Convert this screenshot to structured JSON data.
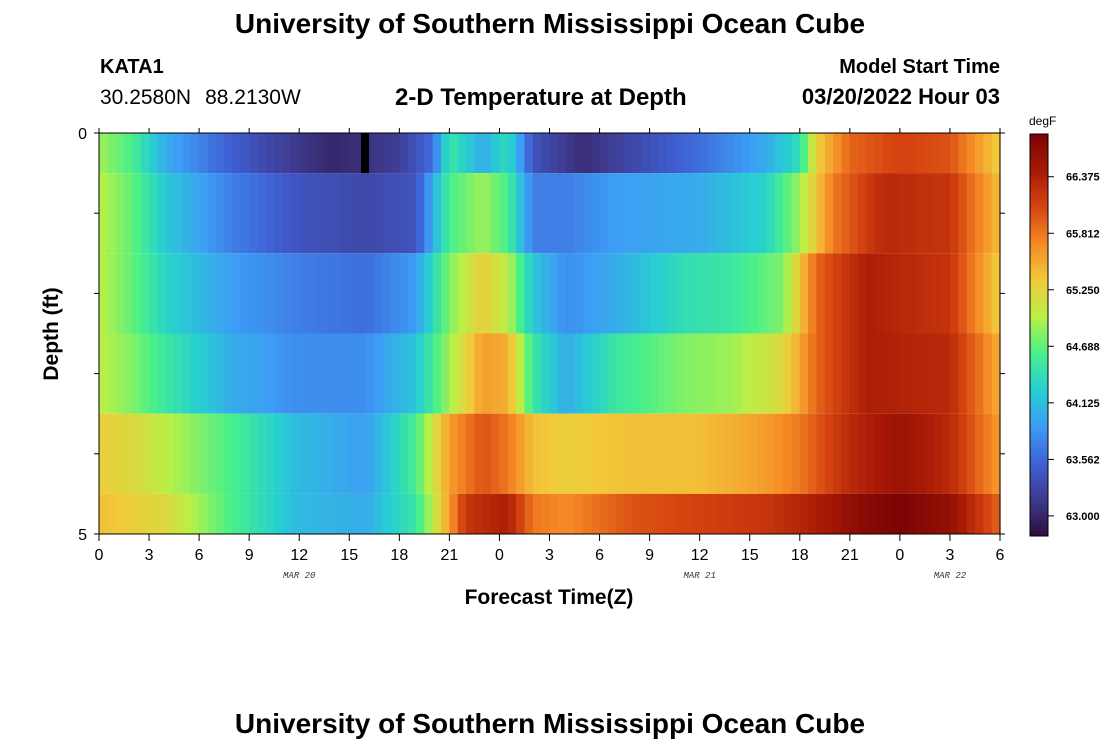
{
  "header": {
    "title": "University of Southern Mississippi Ocean Cube",
    "title_repeat": "University of Southern Mississippi Ocean Cube",
    "station": "KATA1",
    "lat": "30.2580N",
    "lon": "88.2130W",
    "subtitle": "2-D Temperature at Depth",
    "model_start_label": "Model Start Time",
    "model_start_value": "03/20/2022 Hour 03"
  },
  "chart_data": {
    "type": "heatmap",
    "title": "2-D Temperature at Depth",
    "xlabel": "Forecast Time(Z)",
    "ylabel": "Depth (ft)",
    "unit": "degF",
    "x_hours": [
      0,
      6
    ],
    "x_range_hours": [
      0,
      54
    ],
    "depth_range": [
      0,
      5
    ],
    "y_tick_labels": [
      "0",
      "5"
    ],
    "x_tick_labels": [
      "0",
      "3",
      "6",
      "9",
      "12",
      "15",
      "18",
      "21",
      "0",
      "3",
      "6",
      "9",
      "12",
      "15",
      "18",
      "21",
      "0",
      "3",
      "6"
    ],
    "date_labels": [
      {
        "label": "MAR 20",
        "hour": 12
      },
      {
        "label": "MAR 21",
        "hour": 36
      },
      {
        "label": "MAR 22",
        "hour": 51
      }
    ],
    "colorbar_ticks": [
      "66.375",
      "65.812",
      "65.250",
      "64.688",
      "64.125",
      "63.562",
      "63.000"
    ],
    "colorbar_range": [
      62.8,
      66.8
    ],
    "colors": [
      "#2b0f3e",
      "#3e3a8e",
      "#3f62d6",
      "#3d9df5",
      "#27cfd1",
      "#49f08a",
      "#b9f046",
      "#f2c93a",
      "#f58a25",
      "#d54410",
      "#a81906",
      "#7a0403"
    ],
    "rows": [
      {
        "depth": "0-0.5",
        "keys": [
          [
            0,
            64.9
          ],
          [
            2,
            64.6
          ],
          [
            4,
            64.0
          ],
          [
            7,
            63.6
          ],
          [
            10,
            63.3
          ],
          [
            14,
            63.0
          ],
          [
            18,
            63.2
          ],
          [
            20,
            63.6
          ],
          [
            21,
            64.5
          ],
          [
            23,
            64.0
          ],
          [
            24.5,
            64.4
          ],
          [
            26,
            63.4
          ],
          [
            29,
            63.05
          ],
          [
            32,
            63.3
          ],
          [
            36,
            63.6
          ],
          [
            40,
            64.0
          ],
          [
            42,
            64.4
          ],
          [
            43,
            65.3
          ],
          [
            45,
            65.9
          ],
          [
            48,
            66.1
          ],
          [
            51,
            66.0
          ],
          [
            54,
            65.3
          ]
        ]
      },
      {
        "depth": "0.5-1.5",
        "keys": [
          [
            0,
            65.0
          ],
          [
            2,
            64.7
          ],
          [
            4,
            64.2
          ],
          [
            8,
            63.7
          ],
          [
            12,
            63.4
          ],
          [
            16,
            63.3
          ],
          [
            19,
            63.4
          ],
          [
            21,
            64.6
          ],
          [
            23,
            64.9
          ],
          [
            24.5,
            64.6
          ],
          [
            26,
            63.7
          ],
          [
            28,
            63.7
          ],
          [
            31,
            63.9
          ],
          [
            36,
            64.0
          ],
          [
            40,
            64.3
          ],
          [
            42,
            64.9
          ],
          [
            44,
            65.8
          ],
          [
            47,
            66.3
          ],
          [
            51,
            66.2
          ],
          [
            54,
            65.4
          ]
        ]
      },
      {
        "depth": "1.5-2.5",
        "keys": [
          [
            0,
            65.0
          ],
          [
            2,
            64.7
          ],
          [
            4,
            64.3
          ],
          [
            8,
            63.9
          ],
          [
            12,
            63.7
          ],
          [
            16,
            63.6
          ],
          [
            19,
            63.9
          ],
          [
            21,
            64.8
          ],
          [
            23,
            65.3
          ],
          [
            24.5,
            65.0
          ],
          [
            26,
            64.2
          ],
          [
            28,
            63.8
          ],
          [
            31,
            64.0
          ],
          [
            35,
            64.4
          ],
          [
            38,
            64.5
          ],
          [
            41,
            64.8
          ],
          [
            43,
            65.9
          ],
          [
            46,
            66.4
          ],
          [
            51,
            66.2
          ],
          [
            54,
            65.3
          ]
        ]
      },
      {
        "depth": "2.5-3.5",
        "keys": [
          [
            0,
            65.0
          ],
          [
            2,
            64.8
          ],
          [
            4,
            64.5
          ],
          [
            8,
            64.0
          ],
          [
            12,
            63.8
          ],
          [
            16,
            63.8
          ],
          [
            19,
            64.2
          ],
          [
            21,
            64.9
          ],
          [
            23,
            65.6
          ],
          [
            24.5,
            65.5
          ],
          [
            26,
            64.5
          ],
          [
            28,
            64.0
          ],
          [
            31,
            64.5
          ],
          [
            35,
            64.8
          ],
          [
            38,
            64.9
          ],
          [
            41,
            65.2
          ],
          [
            43,
            65.9
          ],
          [
            46,
            66.4
          ],
          [
            51,
            66.3
          ],
          [
            54,
            65.5
          ]
        ]
      },
      {
        "depth": "3.5-4.5",
        "keys": [
          [
            0,
            65.3
          ],
          [
            2,
            65.2
          ],
          [
            4,
            65.0
          ],
          [
            8,
            64.6
          ],
          [
            12,
            64.1
          ],
          [
            16,
            63.9
          ],
          [
            19,
            64.6
          ],
          [
            21,
            65.6
          ],
          [
            23,
            66.0
          ],
          [
            24.5,
            65.8
          ],
          [
            26,
            65.4
          ],
          [
            28,
            65.3
          ],
          [
            32,
            65.4
          ],
          [
            36,
            65.4
          ],
          [
            40,
            65.6
          ],
          [
            42,
            65.8
          ],
          [
            45,
            66.3
          ],
          [
            48,
            66.55
          ],
          [
            51,
            66.3
          ],
          [
            54,
            65.6
          ]
        ]
      },
      {
        "depth": "4.5-5",
        "keys": [
          [
            0,
            65.4
          ],
          [
            2,
            65.3
          ],
          [
            4,
            65.2
          ],
          [
            8,
            64.6
          ],
          [
            12,
            64.1
          ],
          [
            16,
            64.0
          ],
          [
            19,
            64.5
          ],
          [
            20,
            65.0
          ],
          [
            22,
            66.2
          ],
          [
            24.5,
            66.4
          ],
          [
            26,
            65.8
          ],
          [
            28,
            65.7
          ],
          [
            32,
            66.0
          ],
          [
            36,
            66.1
          ],
          [
            40,
            66.2
          ],
          [
            43,
            66.4
          ],
          [
            46,
            66.7
          ],
          [
            48,
            66.8
          ],
          [
            51,
            66.6
          ],
          [
            54,
            65.9
          ]
        ]
      }
    ],
    "missing_cells": [
      {
        "row": 0,
        "hour": 16
      }
    ]
  }
}
